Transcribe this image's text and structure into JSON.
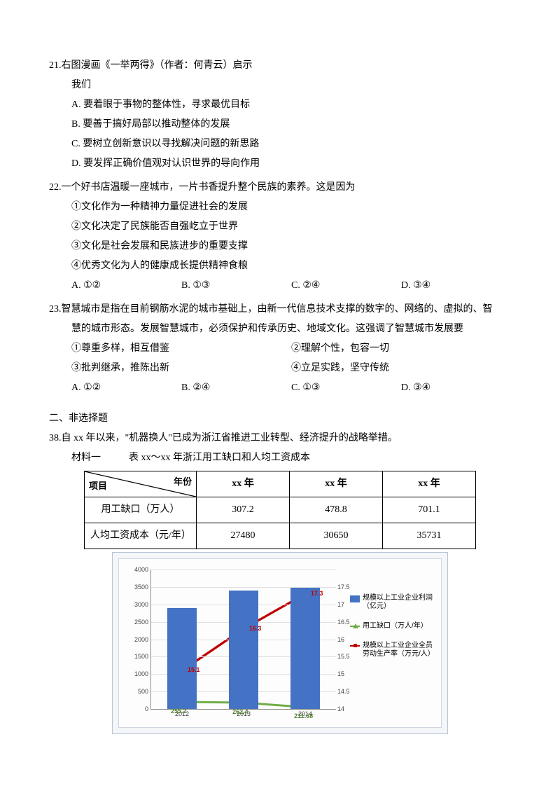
{
  "q21": {
    "num": "21.",
    "stem1": "右图漫画《一举两得》（作者：何青云）启示",
    "stem2": "我们",
    "a": "A. 要着眼于事物的整体性，寻求最优目标",
    "b": "B. 要善于搞好局部以推动整体的发展",
    "c": "C. 要树立创新意识以寻找解决问题的新思路",
    "d": "D. 要发挥正确价值观对认识世界的导向作用"
  },
  "q22": {
    "num": "22.",
    "stem": "一个好书店温暖一座城市，一片书香提升整个民族的素养。这是因为",
    "s1": "①文化作为一种精神力量促进社会的发展",
    "s2": "②文化决定了民族能否自强屹立于世界",
    "s3": "③文化是社会发展和民族进步的重要支撑",
    "s4": "④优秀文化为人的健康成长提供精神食粮",
    "a": "A. ①②",
    "b": "B. ①③",
    "c": "C. ②④",
    "d": "D. ③④"
  },
  "q23": {
    "num": "23.",
    "stem1": "智慧城市是指在目前钢筋水泥的城市基础上，由新一代信息技术支撑的数字的、网络的、虚拟的、智",
    "stem2": "慧的城市形态。发展智慧城市，必须保护和传承历史、地域文化。这强调了智慧城市发展要",
    "s1": "①尊重多样，相互借鉴",
    "s2": "②理解个性，包容一切",
    "s3": "③批判继承，推陈出新",
    "s4": "④立足实践，坚守传统",
    "a": "A. ①②",
    "b": "B. ②④",
    "c": "C. ①③",
    "d": "D. ③④"
  },
  "section2": "二、非选择题",
  "q38": {
    "num": "38.",
    "stem": "自 xx 年以来，\"机器换人\"已成为浙江省推进工业转型、经济提升的战略举措。",
    "mat1_label": "材料一",
    "mat1_title": "表  xx～xx 年浙江用工缺口和人均工资成本"
  },
  "table": {
    "diag_left": "项目",
    "diag_right": "年份",
    "cols": [
      "xx 年",
      "xx 年",
      "xx 年"
    ],
    "rows": [
      {
        "label": "用工缺口（万人）",
        "cells": [
          "307.2",
          "478.8",
          "701.1"
        ]
      },
      {
        "label": "人均工资成本（元/年）",
        "cells": [
          "27480",
          "30650",
          "35731"
        ]
      }
    ]
  },
  "chart": {
    "title_left": "(亿元)",
    "title_right": "(万元/人)",
    "x_categories": [
      "2012",
      "2013",
      "2014"
    ],
    "left_y": {
      "min": 0,
      "max": 4000,
      "step": 500
    },
    "right_y": {
      "min": 14,
      "max": 18,
      "step": 0.5,
      "ticks": [
        14,
        14.5,
        15,
        15.5,
        16,
        16.5,
        17,
        17.5
      ]
    },
    "bars": {
      "values": [
        2900,
        3400,
        3480
      ],
      "color": "#4472c4",
      "width_pct": 16
    },
    "line_green": {
      "values_text": [
        "255.2",
        "262.4",
        "211.68"
      ],
      "values_right_axis": [
        14.2,
        14.18,
        14.05
      ],
      "color": "#70ad47"
    },
    "line_red": {
      "values_text": [
        "15.1",
        "16.3",
        "17.3"
      ],
      "values_right_axis": [
        15.1,
        16.3,
        17.3
      ],
      "color": "#c00000"
    },
    "legend": [
      {
        "type": "bar",
        "text": "规模以上工业企业利润（亿元）"
      },
      {
        "type": "line-g",
        "text": "用工缺口（万人/年）"
      },
      {
        "type": "line-r",
        "text": "规模以上工业企业全员劳动生产率（万元/人）"
      }
    ]
  }
}
